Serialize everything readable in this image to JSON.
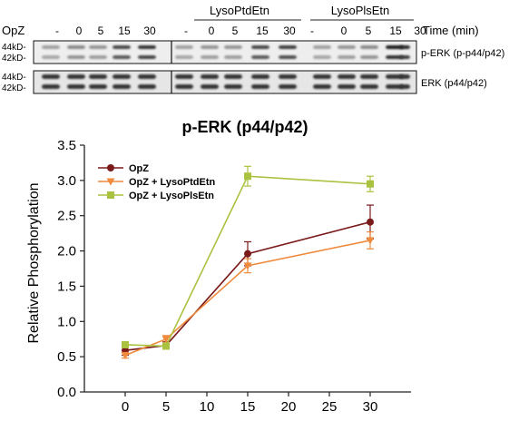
{
  "blot": {
    "treatment_label": "OpZ",
    "time_label": "Time (min)",
    "group_labels": [
      "LysoPtdEtn",
      "LysoPlsEtn"
    ],
    "lane_labels": [
      "-",
      "0",
      "5",
      "15",
      "30",
      "-",
      "0",
      "5",
      "15",
      "30",
      "-",
      "0",
      "5",
      "15",
      "30"
    ],
    "top_panel": {
      "size_labels": [
        "44kD-",
        "42kD-"
      ],
      "name": "p-ERK (p-p44/p42)"
    },
    "bottom_panel": {
      "size_labels": [
        "44kD-",
        "42kD-"
      ],
      "name": "ERK (p44/p42)"
    }
  },
  "chart_data": {
    "type": "line",
    "title": "p-ERK (p44/p42)",
    "xlabel": "",
    "ylabel": "Relative Phosphorylation",
    "xlim": [
      -5,
      35
    ],
    "ylim": [
      0,
      3.5
    ],
    "x_ticks": [
      0,
      5,
      10,
      15,
      20,
      25,
      30
    ],
    "y_ticks": [
      0.0,
      0.5,
      1.0,
      1.5,
      2.0,
      2.5,
      3.0,
      3.5
    ],
    "y_tick_labels": [
      "0.0",
      "0.5",
      "1.0",
      "1.5",
      "2.0",
      "2.5",
      "3.0",
      "3.5"
    ],
    "legend_position": "top-left",
    "grid": false,
    "x": [
      0,
      5,
      15,
      30
    ],
    "series": [
      {
        "name": "OpZ",
        "color": "#7b1a1a",
        "marker": "circle",
        "values": [
          0.59,
          0.66,
          1.96,
          2.41
        ],
        "errors": [
          0.07,
          0.05,
          0.17,
          0.24
        ]
      },
      {
        "name": "OpZ + LysoPtdEtn",
        "color": "#f08a3c",
        "marker": "triangle-down",
        "values": [
          0.52,
          0.75,
          1.79,
          2.15
        ],
        "errors": [
          0.04,
          0.05,
          0.1,
          0.12
        ]
      },
      {
        "name": "OpZ + LysoPlsEtn",
        "color": "#a9c23f",
        "marker": "square",
        "values": [
          0.67,
          0.65,
          3.06,
          2.95
        ],
        "errors": [
          0.04,
          0.04,
          0.14,
          0.11
        ]
      }
    ]
  }
}
